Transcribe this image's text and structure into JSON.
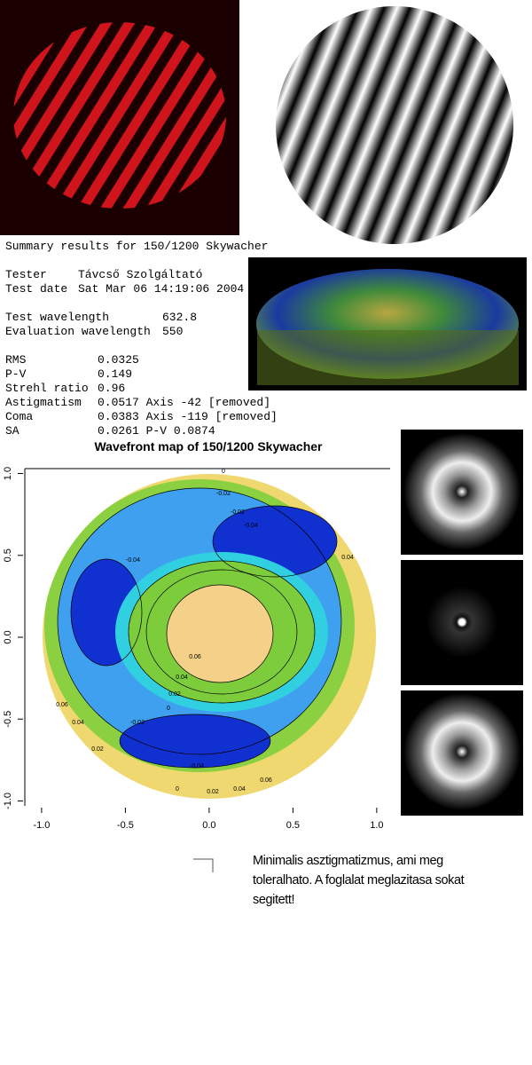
{
  "summary": {
    "title": "Summary results for 150/1200 Skywacher",
    "rows": [
      [
        "Tester",
        "Távcső Szolgáltató"
      ],
      [
        "Test date",
        "Sat Mar 06 14:19:06 2004"
      ],
      [
        "Test wavelength",
        "632.8"
      ],
      [
        "Evaluation wavelength",
        "550"
      ],
      [
        "RMS",
        "0.0325"
      ],
      [
        "P-V",
        "0.149"
      ],
      [
        "Strehl ratio",
        "0.96"
      ],
      [
        "Astigmatism",
        "0.0517 Axis -42  [removed]"
      ],
      [
        "Coma",
        "0.0383 Axis -119  [removed]"
      ],
      [
        "SA",
        "0.0261 P-V 0.0874"
      ]
    ]
  },
  "chart_data": {
    "type": "contour",
    "title": "Wavefront map of 150/1200 Skywacher",
    "xlim": [
      -1.1,
      1.08
    ],
    "ylim": [
      -1.03,
      1.03
    ],
    "xticks": [
      {
        "value": -1,
        "label": "-1.0"
      },
      -0.5,
      {
        "value": 0,
        "label": "0.0"
      },
      0.5,
      {
        "value": 1,
        "label": "1.0"
      }
    ],
    "yticks": [
      {
        "value": -1,
        "label": "-1.0"
      },
      -0.5,
      {
        "value": 0,
        "label": "0.0"
      },
      0.5,
      {
        "value": 1,
        "label": "1.0"
      }
    ],
    "contour_labels": [
      0,
      -0.02,
      -0.02,
      -0.04,
      -0.04,
      0.04,
      0.06,
      0.04,
      0.02,
      0,
      -0.02,
      -0.04,
      0.06,
      0.04,
      0.02,
      0.02,
      0.04,
      0.06,
      0
    ]
  },
  "caption": [
    "Minimalis asztigmatizmus, ami meg",
    "toleralhato. A foglalat meglazitasa sokat",
    "segitett!"
  ]
}
